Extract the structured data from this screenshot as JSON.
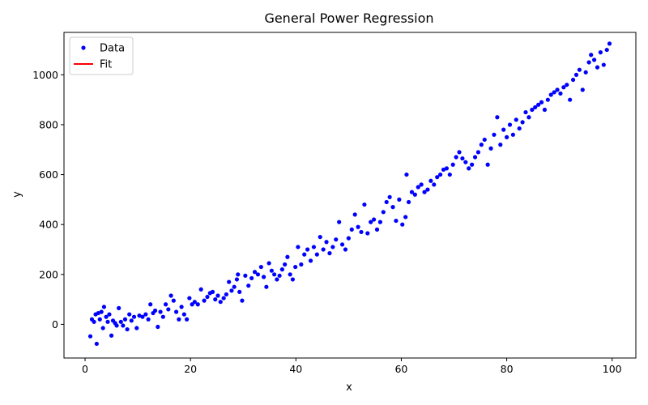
{
  "chart_data": {
    "type": "scatter",
    "title": "General Power Regression",
    "xlabel": "x",
    "ylabel": "y",
    "xlim": [
      -4,
      104.5
    ],
    "ylim": [
      -135,
      1170
    ],
    "xticks": [
      0,
      20,
      40,
      60,
      80,
      100
    ],
    "yticks": [
      0,
      200,
      400,
      600,
      800,
      1000
    ],
    "grid": false,
    "legend": {
      "placement": "top-left",
      "entries": [
        {
          "label": "Data",
          "marker": "dot",
          "color": "#0000ff"
        },
        {
          "label": "Fit",
          "marker": "line",
          "color": "#ff0000"
        }
      ]
    },
    "series": [
      {
        "name": "Data",
        "color": "#0000ff",
        "points": [
          [
            1.0,
            -48
          ],
          [
            1.3,
            20
          ],
          [
            1.7,
            10
          ],
          [
            2.0,
            40
          ],
          [
            2.2,
            -78
          ],
          [
            2.5,
            45
          ],
          [
            2.8,
            20
          ],
          [
            3.1,
            50
          ],
          [
            3.4,
            -15
          ],
          [
            3.6,
            70
          ],
          [
            4.0,
            30
          ],
          [
            4.3,
            10
          ],
          [
            4.6,
            40
          ],
          [
            5.0,
            -45
          ],
          [
            5.3,
            15
          ],
          [
            5.7,
            5
          ],
          [
            6.0,
            -5
          ],
          [
            6.4,
            65
          ],
          [
            6.8,
            10
          ],
          [
            7.2,
            -5
          ],
          [
            7.6,
            20
          ],
          [
            8.0,
            -20
          ],
          [
            8.4,
            40
          ],
          [
            8.8,
            15
          ],
          [
            9.3,
            30
          ],
          [
            9.8,
            -15
          ],
          [
            10.3,
            35
          ],
          [
            10.9,
            30
          ],
          [
            11.5,
            40
          ],
          [
            12.0,
            20
          ],
          [
            12.4,
            80
          ],
          [
            12.9,
            45
          ],
          [
            13.3,
            55
          ],
          [
            13.8,
            -10
          ],
          [
            14.3,
            50
          ],
          [
            14.8,
            30
          ],
          [
            15.3,
            80
          ],
          [
            15.8,
            60
          ],
          [
            16.3,
            115
          ],
          [
            16.8,
            95
          ],
          [
            17.3,
            50
          ],
          [
            17.8,
            20
          ],
          [
            18.3,
            70
          ],
          [
            18.8,
            40
          ],
          [
            19.3,
            20
          ],
          [
            19.8,
            105
          ],
          [
            20.3,
            80
          ],
          [
            20.8,
            90
          ],
          [
            21.4,
            80
          ],
          [
            22.0,
            140
          ],
          [
            22.6,
            95
          ],
          [
            23.2,
            110
          ],
          [
            23.7,
            125
          ],
          [
            24.2,
            130
          ],
          [
            24.7,
            100
          ],
          [
            25.2,
            115
          ],
          [
            25.7,
            90
          ],
          [
            26.3,
            105
          ],
          [
            26.8,
            120
          ],
          [
            27.3,
            170
          ],
          [
            27.8,
            135
          ],
          [
            28.3,
            150
          ],
          [
            28.8,
            180
          ],
          [
            29.0,
            200
          ],
          [
            29.3,
            130
          ],
          [
            29.8,
            95
          ],
          [
            30.4,
            195
          ],
          [
            31.0,
            155
          ],
          [
            31.6,
            185
          ],
          [
            32.2,
            210
          ],
          [
            32.8,
            200
          ],
          [
            33.4,
            230
          ],
          [
            33.9,
            190
          ],
          [
            34.4,
            150
          ],
          [
            34.9,
            245
          ],
          [
            35.4,
            215
          ],
          [
            35.9,
            200
          ],
          [
            36.4,
            180
          ],
          [
            36.9,
            195
          ],
          [
            37.4,
            220
          ],
          [
            37.9,
            240
          ],
          [
            38.4,
            270
          ],
          [
            38.9,
            200
          ],
          [
            39.4,
            180
          ],
          [
            39.9,
            230
          ],
          [
            40.4,
            310
          ],
          [
            41.0,
            240
          ],
          [
            41.6,
            280
          ],
          [
            42.2,
            300
          ],
          [
            42.8,
            255
          ],
          [
            43.4,
            310
          ],
          [
            44.0,
            280
          ],
          [
            44.6,
            350
          ],
          [
            45.2,
            300
          ],
          [
            45.8,
            330
          ],
          [
            46.4,
            285
          ],
          [
            47.0,
            310
          ],
          [
            47.6,
            340
          ],
          [
            48.2,
            410
          ],
          [
            48.8,
            320
          ],
          [
            49.4,
            300
          ],
          [
            50.0,
            345
          ],
          [
            50.6,
            380
          ],
          [
            51.2,
            440
          ],
          [
            51.8,
            390
          ],
          [
            52.4,
            370
          ],
          [
            53.0,
            480
          ],
          [
            53.6,
            365
          ],
          [
            54.2,
            410
          ],
          [
            54.8,
            420
          ],
          [
            55.4,
            380
          ],
          [
            56.0,
            410
          ],
          [
            56.6,
            450
          ],
          [
            57.2,
            490
          ],
          [
            57.8,
            510
          ],
          [
            58.4,
            470
          ],
          [
            59.0,
            415
          ],
          [
            59.6,
            500
          ],
          [
            60.2,
            400
          ],
          [
            60.8,
            430
          ],
          [
            61.0,
            600
          ],
          [
            61.4,
            490
          ],
          [
            62.0,
            530
          ],
          [
            62.6,
            520
          ],
          [
            63.2,
            550
          ],
          [
            63.8,
            560
          ],
          [
            64.4,
            530
          ],
          [
            65.0,
            540
          ],
          [
            65.6,
            575
          ],
          [
            66.2,
            560
          ],
          [
            66.8,
            590
          ],
          [
            67.4,
            600
          ],
          [
            68.0,
            620
          ],
          [
            68.6,
            625
          ],
          [
            69.2,
            600
          ],
          [
            69.8,
            640
          ],
          [
            70.4,
            670
          ],
          [
            71.0,
            690
          ],
          [
            71.6,
            665
          ],
          [
            72.2,
            650
          ],
          [
            72.8,
            625
          ],
          [
            73.4,
            640
          ],
          [
            74.0,
            670
          ],
          [
            74.6,
            690
          ],
          [
            75.2,
            720
          ],
          [
            75.8,
            740
          ],
          [
            76.4,
            640
          ],
          [
            77.0,
            705
          ],
          [
            77.6,
            760
          ],
          [
            78.2,
            830
          ],
          [
            78.8,
            720
          ],
          [
            79.4,
            780
          ],
          [
            80.0,
            750
          ],
          [
            80.6,
            800
          ],
          [
            81.2,
            760
          ],
          [
            81.8,
            820
          ],
          [
            82.4,
            785
          ],
          [
            83.0,
            810
          ],
          [
            83.6,
            850
          ],
          [
            84.2,
            830
          ],
          [
            84.8,
            860
          ],
          [
            85.4,
            870
          ],
          [
            86.0,
            880
          ],
          [
            86.6,
            890
          ],
          [
            87.2,
            860
          ],
          [
            87.8,
            900
          ],
          [
            88.4,
            920
          ],
          [
            89.0,
            930
          ],
          [
            89.6,
            940
          ],
          [
            90.2,
            925
          ],
          [
            90.8,
            950
          ],
          [
            91.4,
            960
          ],
          [
            92.0,
            900
          ],
          [
            92.6,
            980
          ],
          [
            93.2,
            1000
          ],
          [
            93.8,
            1020
          ],
          [
            94.4,
            940
          ],
          [
            95.0,
            1010
          ],
          [
            95.6,
            1050
          ],
          [
            96.0,
            1080
          ],
          [
            96.6,
            1060
          ],
          [
            97.2,
            1030
          ],
          [
            97.8,
            1090
          ],
          [
            98.4,
            1040
          ],
          [
            99.0,
            1100
          ],
          [
            99.5,
            1125
          ]
        ]
      },
      {
        "name": "Fit",
        "color": "#ff0000",
        "points": []
      }
    ]
  }
}
